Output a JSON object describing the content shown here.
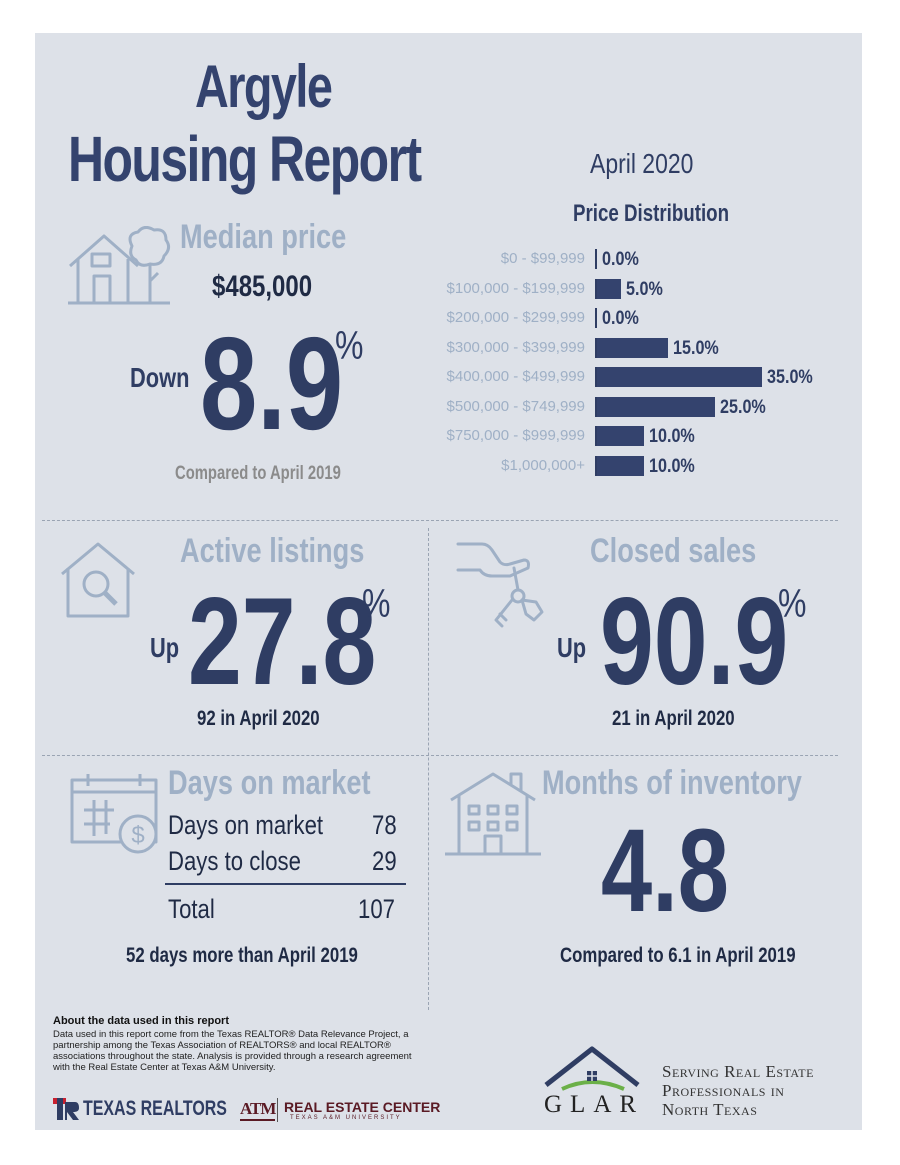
{
  "header": {
    "city": "Argyle",
    "report_title": "Housing Report",
    "month": "April 2020"
  },
  "median_price": {
    "heading": "Median price",
    "value": "$485,000",
    "direction": "Down",
    "change": "8.9",
    "unit": "%",
    "compare_note": "Compared to April 2019"
  },
  "chart_data": {
    "type": "bar",
    "title": "Price Distribution",
    "categories": [
      "$0 - $99,999",
      "$100,000 - $199,999",
      "$200,000 - $299,999",
      "$300,000 - $399,999",
      "$400,000 - $499,999",
      "$500,000 - $749,999",
      "$750,000 - $999,999",
      "$1,000,000+"
    ],
    "values": [
      0.0,
      5.0,
      0.0,
      15.0,
      35.0,
      25.0,
      10.0,
      10.0
    ],
    "value_labels": [
      "0.0%",
      "5.0%",
      "0.0%",
      "15.0%",
      "35.0%",
      "25.0%",
      "10.0%",
      "10.0%"
    ],
    "orientation": "horizontal"
  },
  "active_listings": {
    "heading": "Active listings",
    "direction": "Up",
    "change": "27.8",
    "unit": "%",
    "note": "92 in April 2020"
  },
  "closed_sales": {
    "heading": "Closed sales",
    "direction": "Up",
    "change": "90.9",
    "unit": "%",
    "note": "21 in April 2020"
  },
  "days_on_market": {
    "heading": "Days on market",
    "rows": [
      {
        "label": "Days on market",
        "value": "78"
      },
      {
        "label": "Days to close",
        "value": "29"
      }
    ],
    "total_label": "Total",
    "total_value": "107",
    "note": "52 days more than April 2019"
  },
  "months_inventory": {
    "heading": "Months of inventory",
    "value": "4.8",
    "note": "Compared to 6.1 in April 2019"
  },
  "about": {
    "title": "About the data used in this report",
    "text": "Data used in this report come from the Texas REALTOR® Data Relevance Project, a partnership among the Texas Association of REALTORS® and local REALTOR® associations throughout the state. Analysis is provided through a research agreement with the Real Estate Center at Texas A&M University."
  },
  "logos": {
    "texas_realtors": "TEXAS REALTORS",
    "atm": "ATM",
    "real_estate_center": "REAL ESTATE CENTER",
    "rec_sub": "TEXAS A&M UNIVERSITY",
    "glar": "GLAR",
    "tagline": [
      "Serving Real Estate",
      "Professionals in",
      "North Texas"
    ]
  },
  "colors": {
    "background": "#dde1e8",
    "navy": "#2f3d63",
    "light": "#9fb0c6",
    "red": "#c8202f"
  }
}
